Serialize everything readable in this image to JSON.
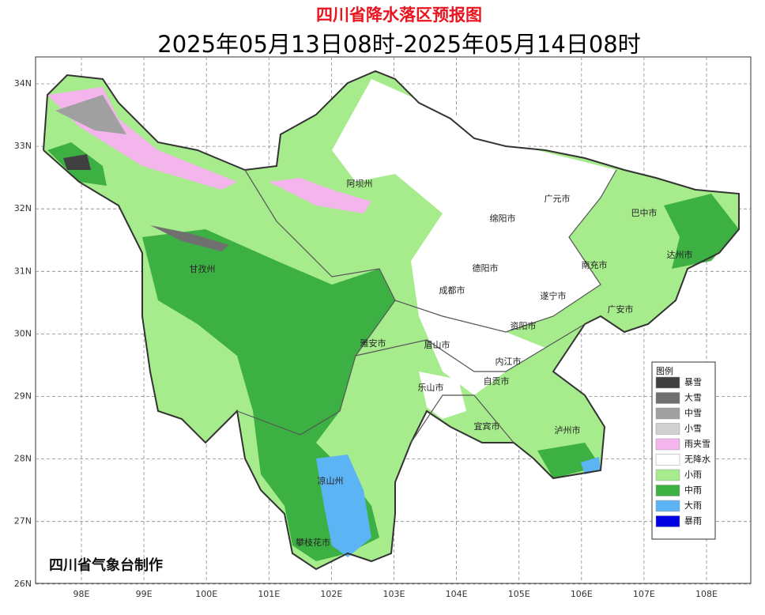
{
  "header": {
    "title": "四川省降水落区预报图",
    "subtitle": "2025年05月13日08时-2025年05月14日08时"
  },
  "map": {
    "lat_labels": [
      "34N",
      "33N",
      "32N",
      "31N",
      "30N",
      "29N",
      "28N",
      "27N",
      "26N"
    ],
    "lon_labels": [
      "98E",
      "99E",
      "100E",
      "101E",
      "102E",
      "103E",
      "104E",
      "105E",
      "106E",
      "107E",
      "108E"
    ],
    "places": [
      "阿坝州",
      "广元市",
      "绵阳市",
      "巴中市",
      "甘孜州",
      "德阳市",
      "南充市",
      "达州市",
      "成都市",
      "遂宁市",
      "广安市",
      "资阳市",
      "雅安市",
      "眉山市",
      "内江市",
      "乐山市",
      "自贡市",
      "宜宾市",
      "泸州市",
      "凉山州",
      "攀枝花市"
    ],
    "credit": "四川省气象台制作"
  },
  "legend": {
    "title": "图例",
    "items": [
      {
        "name": "暴雪",
        "color": "#404040"
      },
      {
        "name": "大雪",
        "color": "#707070"
      },
      {
        "name": "中雪",
        "color": "#a0a0a0"
      },
      {
        "name": "小雪",
        "color": "#d0d0d0"
      },
      {
        "name": "雨夹雪",
        "color": "#f4b4ec"
      },
      {
        "name": "无降水",
        "color": "#ffffff"
      },
      {
        "name": "小雨",
        "color": "#a6ec8c"
      },
      {
        "name": "中雨",
        "color": "#3cb043"
      },
      {
        "name": "大雨",
        "color": "#5cb4f4"
      },
      {
        "name": "暴雨",
        "color": "#0000e0"
      }
    ]
  }
}
